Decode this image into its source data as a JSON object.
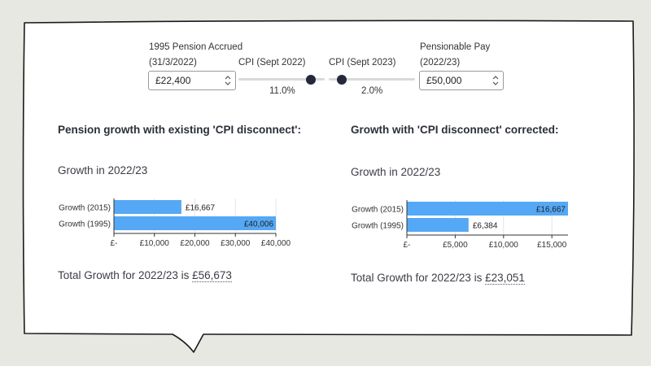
{
  "inputs": {
    "pension_label_line1": "1995 Pension Accrued",
    "pension_label_line2": "(31/3/2022)",
    "pension_value": "£22,400",
    "cpi_2022_label": "CPI (Sept 2022)",
    "cpi_2022_value": "11.0%",
    "cpi_2022_fraction": 0.84,
    "cpi_2023_label": "CPI (Sept 2023)",
    "cpi_2023_value": "2.0%",
    "cpi_2023_fraction": 0.15,
    "pay_label_line1": "Pensionable Pay",
    "pay_label_line2": "(2022/23)",
    "pay_value": "£50,000"
  },
  "left": {
    "heading": "Pension growth with existing 'CPI disconnect':",
    "subheading": "Growth in 2022/23",
    "total_prefix": "Total Growth for 2022/23 is ",
    "total_value": "£56,673"
  },
  "right": {
    "heading": "Growth with 'CPI disconnect' corrected:",
    "subheading": "Growth in 2022/23",
    "total_prefix": "Total Growth for 2022/23 is ",
    "total_value": "£23,051"
  },
  "colors": {
    "bar": "#55a8f5",
    "knob": "#23283a"
  },
  "chart_data": [
    {
      "type": "bar",
      "orientation": "horizontal",
      "categories": [
        "Growth (2015)",
        "Growth (1995)"
      ],
      "values": [
        16667,
        40006
      ],
      "value_labels": [
        "£16,667",
        "£40,006"
      ],
      "xlim": [
        0,
        40000
      ],
      "ticks": [
        0,
        10000,
        20000,
        30000,
        40000
      ],
      "tick_labels": [
        "£-",
        "£10,000",
        "£20,000",
        "£30,000",
        "£40,000"
      ]
    },
    {
      "type": "bar",
      "orientation": "horizontal",
      "categories": [
        "Growth (2015)",
        "Growth (1995)"
      ],
      "values": [
        16667,
        6384
      ],
      "value_labels": [
        "£16,667",
        "£6,384"
      ],
      "xlim": [
        0,
        16667
      ],
      "ticks": [
        0,
        5000,
        10000,
        15000
      ],
      "tick_labels": [
        "£-",
        "£5,000",
        "£10,000",
        "£15,000"
      ]
    }
  ]
}
